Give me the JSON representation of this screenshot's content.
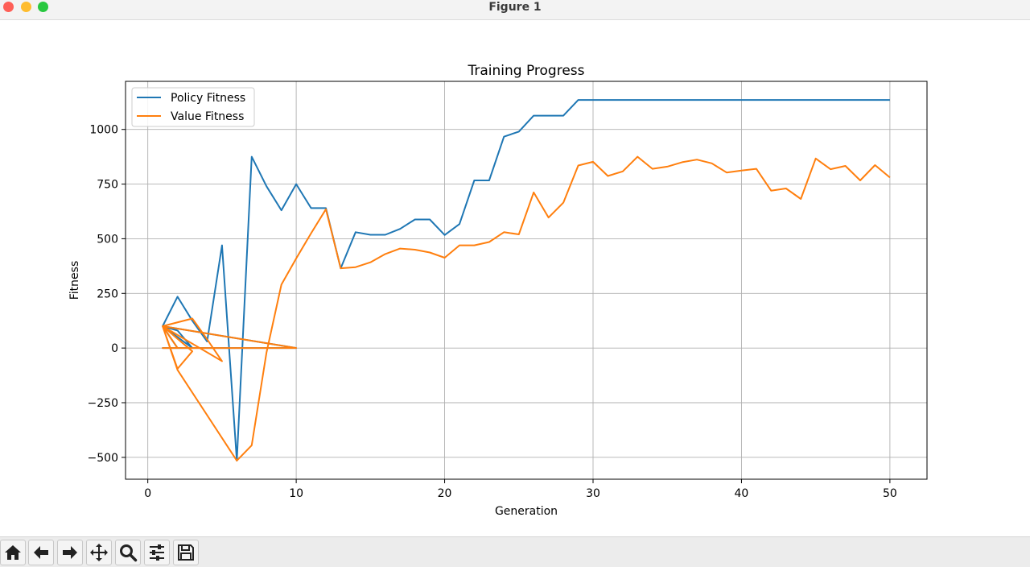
{
  "window": {
    "title": "Figure 1"
  },
  "toolbar": {
    "buttons": [
      {
        "name": "home-button",
        "icon": "home-icon"
      },
      {
        "name": "back-button",
        "icon": "arrow-left-icon"
      },
      {
        "name": "forward-button",
        "icon": "arrow-right-icon"
      },
      {
        "name": "pan-button",
        "icon": "move-icon"
      },
      {
        "name": "zoom-button",
        "icon": "zoom-icon"
      },
      {
        "name": "configure-subplots-button",
        "icon": "sliders-icon"
      },
      {
        "name": "save-button",
        "icon": "save-icon"
      }
    ]
  },
  "chart_data": {
    "type": "line",
    "title": "Training Progress",
    "xlabel": "Generation",
    "ylabel": "Fitness",
    "xlim": [
      -1.5,
      52.5
    ],
    "ylim": [
      -600,
      1220
    ],
    "xticks": [
      0,
      10,
      20,
      30,
      40,
      50
    ],
    "yticks": [
      -500,
      -250,
      0,
      250,
      500,
      750,
      1000
    ],
    "grid": true,
    "legend": "upper-left",
    "series": [
      {
        "name": "Policy Fitness",
        "color": "#1f77b4",
        "points": [
          [
            1,
            100
          ],
          [
            2,
            80
          ],
          [
            3,
            0
          ],
          [
            1,
            100
          ],
          [
            2,
            0
          ],
          [
            1,
            0
          ],
          [
            10,
            0
          ],
          [
            1,
            100
          ],
          [
            2,
            235
          ],
          [
            3,
            125
          ],
          [
            4,
            30
          ],
          [
            5,
            470
          ],
          [
            6,
            -515
          ],
          [
            7,
            875
          ],
          [
            8,
            740
          ],
          [
            9,
            630
          ],
          [
            10,
            750
          ],
          [
            11,
            640
          ],
          [
            12,
            640
          ],
          [
            13,
            365
          ],
          [
            14,
            530
          ],
          [
            15,
            518
          ],
          [
            16,
            518
          ],
          [
            17,
            545
          ],
          [
            18,
            588
          ],
          [
            19,
            588
          ],
          [
            20,
            517
          ],
          [
            21,
            567
          ],
          [
            22,
            767
          ],
          [
            23,
            767
          ],
          [
            24,
            967
          ],
          [
            25,
            990
          ],
          [
            26,
            1063
          ],
          [
            27,
            1063
          ],
          [
            28,
            1063
          ],
          [
            29,
            1135
          ],
          [
            30,
            1135
          ],
          [
            35,
            1135
          ],
          [
            40,
            1135
          ],
          [
            45,
            1135
          ],
          [
            50,
            1135
          ]
        ]
      },
      {
        "name": "Value Fitness",
        "color": "#ff7f0e",
        "points": [
          [
            1,
            100
          ],
          [
            2,
            -95
          ],
          [
            3,
            -15
          ],
          [
            1,
            100
          ],
          [
            3,
            135
          ],
          [
            4,
            40
          ],
          [
            5,
            -60
          ],
          [
            1,
            100
          ],
          [
            2,
            0
          ],
          [
            1,
            0
          ],
          [
            10,
            0
          ],
          [
            1,
            100
          ],
          [
            2,
            -100
          ],
          [
            6,
            -515
          ],
          [
            7,
            -445
          ],
          [
            8,
            -20
          ],
          [
            9,
            290
          ],
          [
            10,
            410
          ],
          [
            11,
            525
          ],
          [
            12,
            635
          ],
          [
            13,
            365
          ],
          [
            14,
            370
          ],
          [
            15,
            392
          ],
          [
            16,
            430
          ],
          [
            17,
            455
          ],
          [
            18,
            450
          ],
          [
            19,
            437
          ],
          [
            20,
            413
          ],
          [
            21,
            470
          ],
          [
            22,
            470
          ],
          [
            23,
            485
          ],
          [
            24,
            530
          ],
          [
            25,
            520
          ],
          [
            26,
            712
          ],
          [
            27,
            597
          ],
          [
            28,
            665
          ],
          [
            29,
            835
          ],
          [
            30,
            852
          ],
          [
            31,
            787
          ],
          [
            32,
            808
          ],
          [
            33,
            875
          ],
          [
            34,
            820
          ],
          [
            35,
            830
          ],
          [
            36,
            850
          ],
          [
            37,
            862
          ],
          [
            38,
            845
          ],
          [
            39,
            803
          ],
          [
            40,
            812
          ],
          [
            41,
            820
          ],
          [
            42,
            720
          ],
          [
            43,
            730
          ],
          [
            44,
            682
          ],
          [
            45,
            867
          ],
          [
            46,
            818
          ],
          [
            47,
            833
          ],
          [
            48,
            767
          ],
          [
            49,
            837
          ],
          [
            50,
            780
          ]
        ]
      }
    ]
  }
}
